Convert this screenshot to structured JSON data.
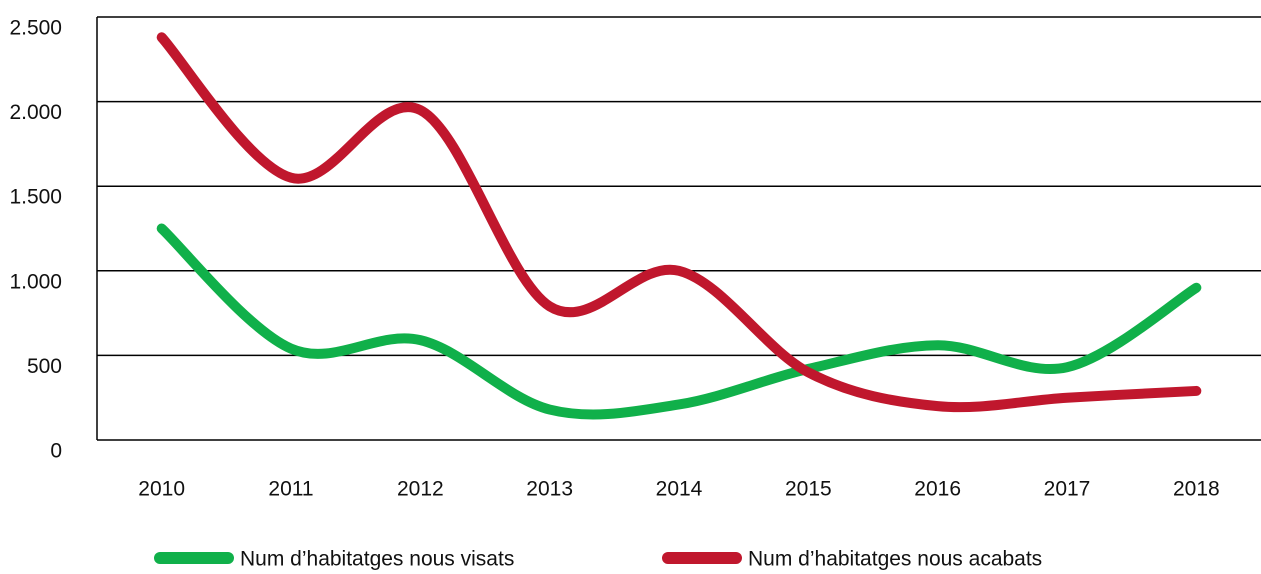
{
  "chart_data": {
    "type": "line",
    "categories": [
      "2010",
      "2011",
      "2012",
      "2013",
      "2014",
      "2015",
      "2016",
      "2017",
      "2018"
    ],
    "series": [
      {
        "name": "Num d’habitatges nous visats",
        "color": "#10b04a",
        "values": [
          1250,
          540,
          590,
          180,
          210,
          420,
          560,
          430,
          900
        ]
      },
      {
        "name": "Num d’habitatges nous acabats",
        "color": "#c0172d",
        "values": [
          2380,
          1550,
          1950,
          790,
          1000,
          400,
          200,
          250,
          290
        ]
      }
    ],
    "ylim": [
      0,
      2500
    ],
    "yticks": [
      0,
      500,
      {
        "value": 1000,
        "label": "1.000"
      },
      {
        "value": 1500,
        "label": "1.500"
      },
      {
        "value": 2000,
        "label": "2.000"
      },
      {
        "value": 2500,
        "label": "2.500"
      }
    ],
    "grid": true
  }
}
